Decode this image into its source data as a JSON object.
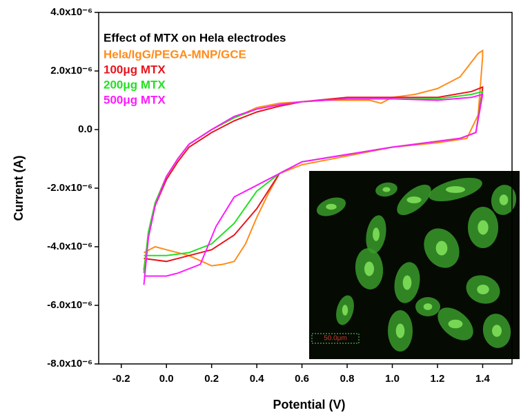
{
  "chart_data": {
    "type": "line",
    "legend_title": "Effect of MTX on Hela electrodes",
    "x_label": "Potential (V)",
    "y_label": "Current (A)",
    "xlim": [
      -0.3,
      1.53
    ],
    "ylim": [
      -8e-06,
      4e-06
    ],
    "xticks": [
      -0.2,
      {
        "value": 0,
        "label": "0.0"
      },
      0.2,
      0.4,
      0.6,
      0.8,
      {
        "value": 1,
        "label": "1.0"
      },
      1.2,
      1.4
    ],
    "yticks": [
      {
        "value": 4e-06,
        "label": "4.0x10⁻⁶"
      },
      {
        "value": 2e-06,
        "label": "2.0x10⁻⁶"
      },
      {
        "value": 0,
        "label": "0.0"
      },
      {
        "value": -2e-06,
        "label": "-2.0x10⁻⁶"
      },
      {
        "value": -4e-06,
        "label": "-4.0x10⁻⁶"
      },
      {
        "value": -6e-06,
        "label": "-6.0x10⁻⁶"
      },
      {
        "value": -8e-06,
        "label": "-8.0x10⁻⁶"
      }
    ],
    "legend": "upper left",
    "inset_label": "50.0μm",
    "series": [
      {
        "name": "Hela/IgG/PEGA-MNP/GCE",
        "color": "#ff8c1a",
        "x": [
          -0.1,
          -0.08,
          -0.05,
          0,
          0.05,
          0.1,
          0.2,
          0.3,
          0.4,
          0.5,
          0.6,
          0.7,
          0.8,
          0.9,
          0.95,
          1.0,
          1.1,
          1.2,
          1.3,
          1.38,
          1.4,
          1.4,
          1.38,
          1.33,
          1.2,
          1.0,
          0.8,
          0.6,
          0.5,
          0.45,
          0.4,
          0.35,
          0.3,
          0.25,
          0.2,
          0.1,
          0,
          -0.05,
          -0.1
        ],
        "values": [
          -4.9e-06,
          -3.5e-06,
          -2.5e-06,
          -1.6e-06,
          -1e-06,
          -5e-07,
          0.0,
          4e-07,
          7.5e-07,
          9e-07,
          9.5e-07,
          1e-06,
          1e-06,
          1e-06,
          9e-07,
          1.1e-06,
          1.2e-06,
          1.4e-06,
          1.8e-06,
          2.6e-06,
          2.7e-06,
          2.5e-06,
          5e-07,
          -3e-07,
          -4.5e-07,
          -6e-07,
          -9e-07,
          -1.2e-06,
          -1.5e-06,
          -2.2e-06,
          -3e-06,
          -3.9e-06,
          -4.5e-06,
          -4.6e-06,
          -4.65e-06,
          -4.3e-06,
          -4.1e-06,
          -4e-06,
          -4.2e-06
        ]
      },
      {
        "name": "100μg MTX",
        "color": "#e8141c",
        "x": [
          -0.1,
          -0.08,
          -0.05,
          0,
          0.05,
          0.1,
          0.2,
          0.3,
          0.4,
          0.5,
          0.6,
          0.8,
          1.0,
          1.2,
          1.35,
          1.4,
          1.4,
          1.37,
          1.3,
          1.0,
          0.6,
          0.5,
          0.4,
          0.3,
          0.2,
          0.1,
          0,
          -0.1
        ],
        "values": [
          -4.8e-06,
          -3.6e-06,
          -2.6e-06,
          -1.7e-06,
          -1.1e-06,
          -6e-07,
          -1e-07,
          3e-07,
          6e-07,
          8e-07,
          9.5e-07,
          1.1e-06,
          1.1e-06,
          1.1e-06,
          1.3e-06,
          1.45e-06,
          1.4e-06,
          -1e-07,
          -3e-07,
          -6e-07,
          -1.1e-06,
          -1.5e-06,
          -2.7e-06,
          -3.6e-06,
          -4.1e-06,
          -4.3e-06,
          -4.5e-06,
          -4.4e-06
        ]
      },
      {
        "name": "200μg MTX",
        "color": "#22e022",
        "x": [
          -0.1,
          -0.08,
          -0.05,
          0,
          0.05,
          0.1,
          0.2,
          0.3,
          0.4,
          0.5,
          0.6,
          0.8,
          1.0,
          1.2,
          1.35,
          1.4,
          1.4,
          1.37,
          1.3,
          1.0,
          0.6,
          0.5,
          0.4,
          0.3,
          0.2,
          0.1,
          0,
          -0.1
        ],
        "values": [
          -4.9e-06,
          -3.5e-06,
          -2.5e-06,
          -1.6e-06,
          -1e-06,
          -5e-07,
          0.0,
          4e-07,
          7e-07,
          8.5e-07,
          9.5e-07,
          1.05e-06,
          1.05e-06,
          1.05e-06,
          1.2e-06,
          1.3e-06,
          1.3e-06,
          -1e-07,
          -3e-07,
          -6e-07,
          -1.1e-06,
          -1.5e-06,
          -2.1e-06,
          -3.2e-06,
          -3.9e-06,
          -4.2e-06,
          -4.3e-06,
          -4.3e-06
        ]
      },
      {
        "name": "500μg MTX",
        "color": "#ff1aff",
        "x": [
          -0.1,
          -0.08,
          -0.05,
          0,
          0.05,
          0.1,
          0.2,
          0.3,
          0.4,
          0.5,
          0.6,
          0.8,
          1.0,
          1.2,
          1.35,
          1.4,
          1.4,
          1.37,
          1.3,
          1.0,
          0.6,
          0.5,
          0.4,
          0.3,
          0.22,
          0.15,
          0.05,
          0,
          -0.1
        ],
        "values": [
          -5.3e-06,
          -3.7e-06,
          -2.6e-06,
          -1.6e-06,
          -1e-06,
          -5e-07,
          0.0,
          4.5e-07,
          7e-07,
          8.5e-07,
          9.5e-07,
          1.05e-06,
          1.05e-06,
          1e-06,
          1.1e-06,
          1.2e-06,
          1.2e-06,
          -1e-07,
          -3e-07,
          -6e-07,
          -1.1e-06,
          -1.5e-06,
          -1.9e-06,
          -2.3e-06,
          -3.3e-06,
          -4.6e-06,
          -4.9e-06,
          -5e-06,
          -5e-06
        ]
      }
    ]
  }
}
